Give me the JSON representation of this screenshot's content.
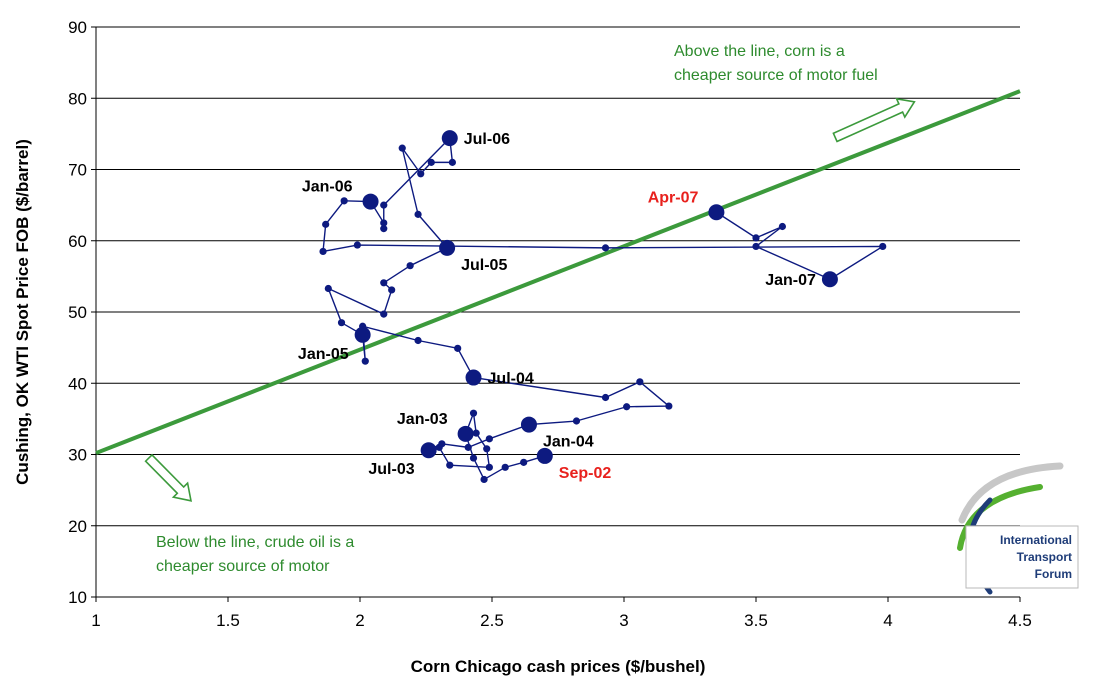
{
  "chart_data": {
    "type": "scatter",
    "title": "",
    "xlabel": "Corn Chicago cash prices ($/bushel)",
    "ylabel": "Cushing, OK WTI Spot Price FOB ($/barrel)",
    "xlim": [
      1,
      4.5
    ],
    "ylim": [
      10,
      90
    ],
    "x_ticks": [
      1,
      1.5,
      2,
      2.5,
      3,
      3.5,
      4,
      4.5
    ],
    "x_tick_labels": [
      "1",
      "1.5",
      "2",
      "2.5",
      "3",
      "3.5",
      "4",
      "4.5"
    ],
    "y_ticks": [
      10,
      20,
      30,
      40,
      50,
      60,
      70,
      80,
      90
    ],
    "y_tick_labels": [
      "10",
      "20",
      "30",
      "40",
      "50",
      "60",
      "70",
      "80",
      "90"
    ],
    "grid": "horizontal",
    "colors": {
      "path": "#0d1a80",
      "line": "#3c9a3c",
      "note": "#2e8b2e",
      "label_default": "#000000",
      "label_highlight": "#e8211d"
    },
    "path_points": [
      {
        "x": 2.7,
        "y": 29.8,
        "label": "Sep-02",
        "major": true
      },
      {
        "x": 2.62,
        "y": 28.9
      },
      {
        "x": 2.55,
        "y": 28.2
      },
      {
        "x": 2.47,
        "y": 26.5
      },
      {
        "x": 2.43,
        "y": 29.5
      },
      {
        "x": 2.4,
        "y": 32.9,
        "label": "Jan-03",
        "major": true
      },
      {
        "x": 2.43,
        "y": 35.8
      },
      {
        "x": 2.44,
        "y": 33.0
      },
      {
        "x": 2.48,
        "y": 30.8
      },
      {
        "x": 2.49,
        "y": 28.2
      },
      {
        "x": 2.34,
        "y": 28.5
      },
      {
        "x": 2.3,
        "y": 31.0
      },
      {
        "x": 2.26,
        "y": 30.6,
        "label": "Jul-03",
        "major": true
      },
      {
        "x": 2.31,
        "y": 31.5
      },
      {
        "x": 2.41,
        "y": 31.0
      },
      {
        "x": 2.49,
        "y": 32.2
      },
      {
        "x": 2.64,
        "y": 34.2,
        "label": "Jan-04",
        "major": true
      },
      {
        "x": 2.82,
        "y": 34.7
      },
      {
        "x": 3.01,
        "y": 36.7
      },
      {
        "x": 3.17,
        "y": 36.8
      },
      {
        "x": 3.06,
        "y": 40.2
      },
      {
        "x": 2.93,
        "y": 38.0
      },
      {
        "x": 2.43,
        "y": 40.8,
        "label": "Jul-04",
        "major": true
      },
      {
        "x": 2.37,
        "y": 44.9
      },
      {
        "x": 2.22,
        "y": 46.0
      },
      {
        "x": 2.01,
        "y": 48.0
      },
      {
        "x": 2.02,
        "y": 43.1
      },
      {
        "x": 2.01,
        "y": 46.8,
        "label": "Jan-05",
        "major": true
      },
      {
        "x": 1.93,
        "y": 48.5
      },
      {
        "x": 1.88,
        "y": 53.3
      },
      {
        "x": 2.09,
        "y": 49.7
      },
      {
        "x": 2.12,
        "y": 53.1
      },
      {
        "x": 2.09,
        "y": 54.1
      },
      {
        "x": 2.19,
        "y": 56.5
      },
      {
        "x": 2.33,
        "y": 59.0,
        "label": "Jul-05",
        "major": true
      },
      {
        "x": 2.22,
        "y": 63.7
      },
      {
        "x": 2.16,
        "y": 73.0
      },
      {
        "x": 2.23,
        "y": 69.4
      },
      {
        "x": 2.27,
        "y": 71.0
      },
      {
        "x": 2.35,
        "y": 71.0
      },
      {
        "x": 2.34,
        "y": 74.4,
        "label": "Jul-06",
        "major": true
      },
      {
        "x": 2.09,
        "y": 65.0
      },
      {
        "x": 2.09,
        "y": 61.7
      },
      {
        "x": 2.09,
        "y": 62.5
      },
      {
        "x": 2.04,
        "y": 65.5,
        "label": "Jan-06",
        "major": true
      },
      {
        "x": 1.94,
        "y": 65.6
      },
      {
        "x": 1.87,
        "y": 62.3
      },
      {
        "x": 1.86,
        "y": 58.5
      },
      {
        "x": 1.99,
        "y": 59.4
      },
      {
        "x": 2.93,
        "y": 59.0
      },
      {
        "x": 3.98,
        "y": 59.2
      },
      {
        "x": 3.78,
        "y": 54.6,
        "label": "Jan-07",
        "major": true
      },
      {
        "x": 3.5,
        "y": 59.2
      },
      {
        "x": 3.6,
        "y": 62.0
      },
      {
        "x": 3.5,
        "y": 60.4
      },
      {
        "x": 3.35,
        "y": 64.0,
        "label": "Apr-07",
        "major": true
      }
    ],
    "point_labels": [
      {
        "text": "Jul-06",
        "highlight": false,
        "pos": "right"
      },
      {
        "text": "Jan-06",
        "highlight": false,
        "pos": "left-up"
      },
      {
        "text": "Apr-07",
        "highlight": true,
        "pos": "left-up"
      },
      {
        "text": "Jul-05",
        "highlight": false,
        "pos": "right-down"
      },
      {
        "text": "Jan-07",
        "highlight": false,
        "pos": "left"
      },
      {
        "text": "Jan-05",
        "highlight": false,
        "pos": "left-down"
      },
      {
        "text": "Jul-04",
        "highlight": false,
        "pos": "right"
      },
      {
        "text": "Jan-03",
        "highlight": false,
        "pos": "left-up"
      },
      {
        "text": "Jan-04",
        "highlight": false,
        "pos": "right-down"
      },
      {
        "text": "Jul-03",
        "highlight": false,
        "pos": "left-down"
      },
      {
        "text": "Sep-02",
        "highlight": true,
        "pos": "right-down"
      }
    ],
    "breakeven_line": {
      "x1": 1,
      "y1": 30.2,
      "x2": 4.5,
      "y2": 81.0
    },
    "arrow_up": {
      "x1": 3.8,
      "y1": 74.5,
      "x2": 4.1,
      "y2": 79.5
    },
    "arrow_down": {
      "x1": 1.2,
      "y1": 29.5,
      "x2": 1.36,
      "y2": 23.5
    },
    "annotations": {
      "above_line1": "Above the line, corn is a",
      "above_line2": "cheaper source of motor fuel",
      "below_line1": "Below  the line, crude oil is a",
      "below_line2": "cheaper source of motor"
    },
    "logo": {
      "line1": "International",
      "line2": "Transport",
      "line3": "Forum"
    }
  }
}
